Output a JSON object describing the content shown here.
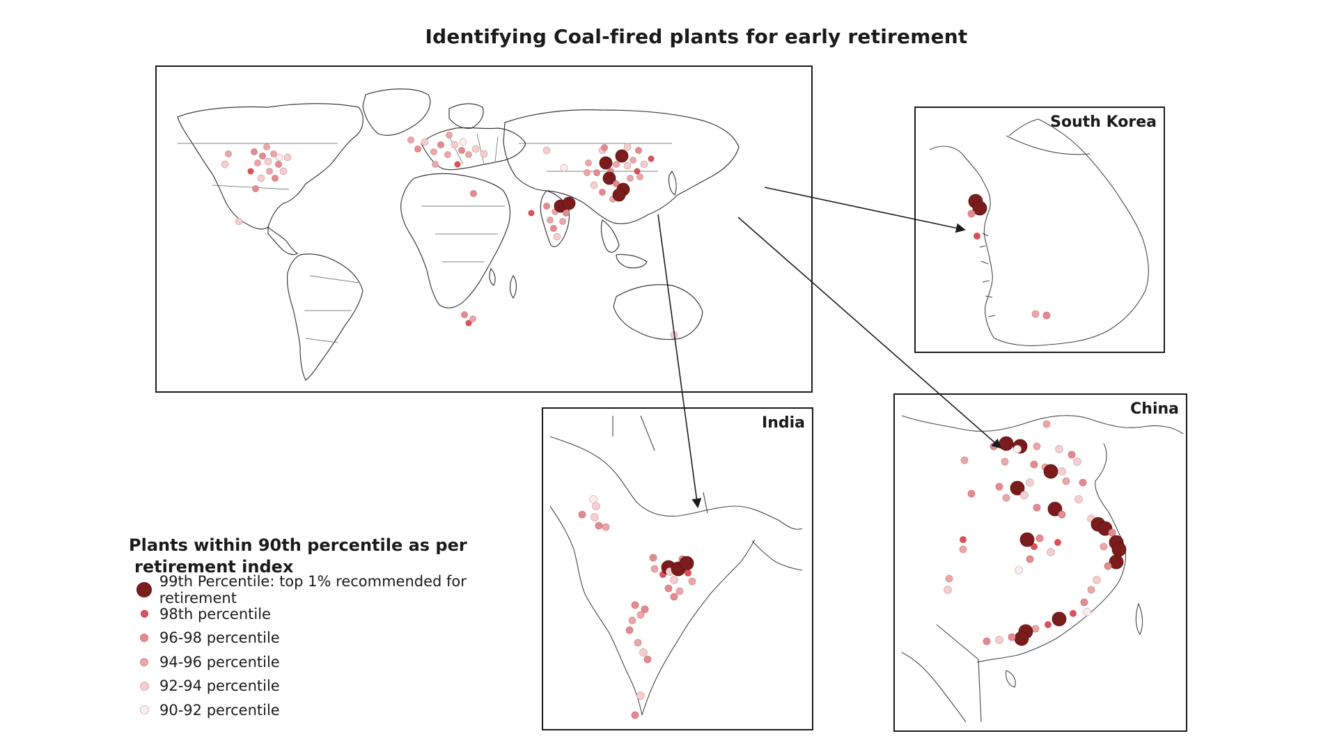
{
  "title": "Identifying Coal-fired plants for early retirement",
  "panels": {
    "korea": "South Korea",
    "india": "India",
    "china": "China"
  },
  "legend": {
    "title_line1": "Plants within 90th percentile as per",
    "title_line2": "retirement index",
    "items": [
      {
        "label": "99th Percentile: top 1% recommended for retirement",
        "color": "#7a1c1c",
        "size": 20
      },
      {
        "label": "98th percentile",
        "color": "#d9535a",
        "size": 9
      },
      {
        "label": "96-98 percentile",
        "color": "#e28c90",
        "size": 10
      },
      {
        "label": "94-96 percentile",
        "color": "#eaa6a8",
        "size": 10
      },
      {
        "label": "92-94 percentile",
        "color": "#f3cfd0",
        "size": 11
      },
      {
        "label": "90-92 percentile",
        "color": "#fbeeee",
        "size": 11
      }
    ]
  },
  "colors": {
    "p99": "#7a1c1c",
    "p98": "#d9535a",
    "p96": "#e28c90",
    "p94": "#eaa6a8",
    "p92": "#f3cfd0",
    "p90": "#fbeeee"
  }
}
